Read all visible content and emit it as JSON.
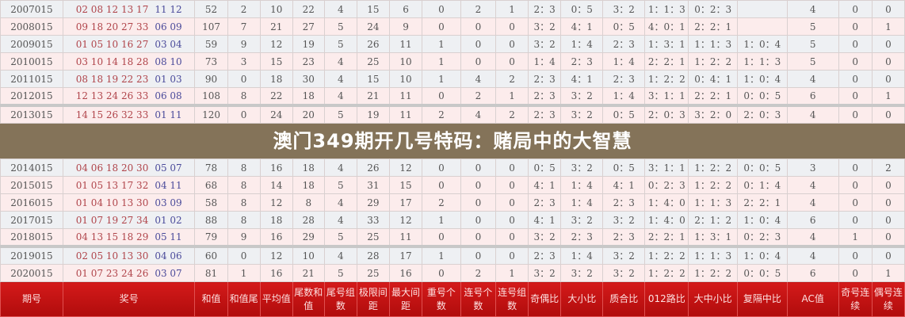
{
  "title": "澳门349期开几号特码：赌局中的大智慧",
  "headers": [
    "期号",
    "奖号",
    "和值",
    "和值尾",
    "平均值",
    "尾数和值",
    "尾号组数",
    "极限间距",
    "最大间距",
    "重号个数",
    "连号个数",
    "连号组数",
    "奇偶比",
    "大小比",
    "质合比",
    "012路比",
    "大中小比",
    "复隔中比",
    "AC值",
    "奇号连续",
    "偶号连续"
  ],
  "rows": [
    {
      "issue": "2007015",
      "red": "02 08 12 13 17",
      "blue": "11 12",
      "vals": [
        "52",
        "2",
        "10",
        "22",
        "4",
        "15",
        "6",
        "0",
        "2",
        "1",
        "2：3",
        "0：5",
        "3：2",
        "1：1：3",
        "0：2：3",
        "",
        "4",
        "0",
        "0"
      ]
    },
    {
      "issue": "2008015",
      "red": "09 18 20 27 33",
      "blue": "06 09",
      "vals": [
        "107",
        "7",
        "21",
        "27",
        "5",
        "24",
        "9",
        "0",
        "0",
        "0",
        "3：2",
        "4：1",
        "0：5",
        "4：0：1",
        "2：2：1",
        "",
        "5",
        "0",
        "1"
      ]
    },
    {
      "issue": "2009015",
      "red": "01 05 10 16 27",
      "blue": "03 04",
      "vals": [
        "59",
        "9",
        "12",
        "19",
        "5",
        "26",
        "11",
        "1",
        "0",
        "0",
        "3：2",
        "1：4",
        "2：3",
        "1：3：1",
        "1：1：3",
        "1：0：4",
        "5",
        "0",
        "0"
      ]
    },
    {
      "issue": "2010015",
      "red": "03 10 14 18 28",
      "blue": "08 10",
      "vals": [
        "73",
        "3",
        "15",
        "23",
        "4",
        "25",
        "10",
        "1",
        "0",
        "0",
        "1：4",
        "2：3",
        "1：4",
        "2：2：1",
        "1：2：2",
        "1：1：3",
        "5",
        "0",
        "0"
      ]
    },
    {
      "issue": "2011015",
      "red": "08 18 19 22 23",
      "blue": "01 03",
      "vals": [
        "90",
        "0",
        "18",
        "30",
        "4",
        "15",
        "10",
        "1",
        "4",
        "2",
        "2：3",
        "4：1",
        "2：3",
        "1：2：2",
        "0：4：1",
        "1：0：4",
        "4",
        "0",
        "0"
      ]
    },
    {
      "issue": "2012015",
      "red": "12 13 24 26 33",
      "blue": "06 08",
      "vals": [
        "108",
        "8",
        "22",
        "18",
        "4",
        "21",
        "11",
        "0",
        "2",
        "1",
        "2：3",
        "3：2",
        "1：4",
        "3：1：1",
        "2：2：1",
        "0：0：5",
        "6",
        "0",
        "1"
      ]
    },
    {
      "issue": "2013015",
      "red": "14 15 26 32 33",
      "blue": "01 11",
      "vals": [
        "120",
        "0",
        "24",
        "20",
        "5",
        "19",
        "11",
        "2",
        "4",
        "2",
        "2：3",
        "3：2",
        "0：5",
        "2：0：3",
        "3：2：0",
        "2：0：3",
        "4",
        "0",
        "0"
      ]
    },
    {
      "issue": "2014015",
      "red": "04 06 18 20 30",
      "blue": "05 07",
      "vals": [
        "78",
        "8",
        "16",
        "18",
        "4",
        "26",
        "12",
        "0",
        "0",
        "0",
        "0：5",
        "3：2",
        "0：5",
        "3：1：1",
        "1：2：2",
        "0：0：5",
        "3",
        "0",
        "2"
      ]
    },
    {
      "issue": "2015015",
      "red": "01 05 13 17 32",
      "blue": "04 11",
      "vals": [
        "68",
        "8",
        "14",
        "18",
        "5",
        "31",
        "15",
        "0",
        "0",
        "0",
        "4：1",
        "1：4",
        "4：1",
        "0：2：3",
        "1：2：2",
        "0：1：4",
        "4",
        "0",
        "0"
      ]
    },
    {
      "issue": "2016015",
      "red": "01 04 10 13 30",
      "blue": "03 09",
      "vals": [
        "58",
        "8",
        "12",
        "8",
        "4",
        "29",
        "17",
        "2",
        "0",
        "0",
        "2：3",
        "1：4",
        "2：3",
        "1：4：0",
        "1：1：3",
        "2：2：1",
        "4",
        "0",
        "0"
      ]
    },
    {
      "issue": "2017015",
      "red": "01 07 19 27 34",
      "blue": "01 02",
      "vals": [
        "88",
        "8",
        "18",
        "28",
        "4",
        "33",
        "12",
        "1",
        "0",
        "0",
        "4：1",
        "3：2",
        "3：2",
        "1：4：0",
        "2：1：2",
        "1：0：4",
        "6",
        "0",
        "0"
      ]
    },
    {
      "issue": "2018015",
      "red": "04 13 15 18 29",
      "blue": "05 11",
      "vals": [
        "79",
        "9",
        "16",
        "29",
        "5",
        "25",
        "11",
        "0",
        "0",
        "0",
        "3：2",
        "2：3",
        "2：3",
        "2：2：1",
        "1：3：1",
        "0：2：3",
        "4",
        "1",
        "0"
      ]
    },
    {
      "issue": "2019015",
      "red": "02 05 10 13 30",
      "blue": "04 06",
      "vals": [
        "60",
        "0",
        "12",
        "10",
        "4",
        "28",
        "17",
        "1",
        "0",
        "0",
        "2：3",
        "1：4",
        "3：2",
        "1：2：2",
        "1：1：3",
        "1：0：4",
        "4",
        "0",
        "0"
      ]
    },
    {
      "issue": "2020015",
      "red": "01 07 23 24 26",
      "blue": "03 07",
      "vals": [
        "81",
        "1",
        "16",
        "21",
        "5",
        "25",
        "16",
        "0",
        "2",
        "1",
        "3：2",
        "3：2",
        "3：2",
        "1：2：2",
        "1：2：2",
        "0：0：5",
        "6",
        "0",
        "1"
      ]
    }
  ]
}
